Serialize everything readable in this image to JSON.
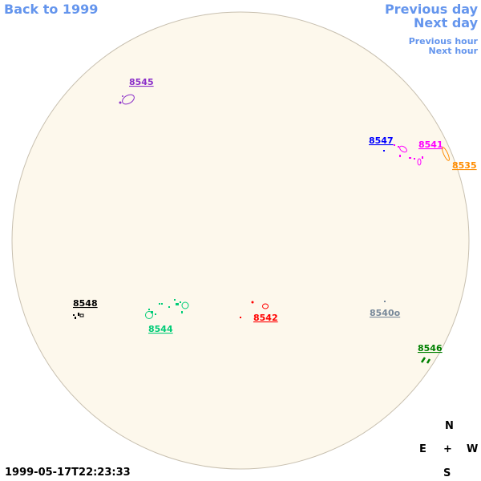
{
  "nav": {
    "back": "Back to 1999",
    "previous_day": "Previous day",
    "next_day": "Next day",
    "previous_hour": "Previous hour",
    "next_hour": "Next hour"
  },
  "colors": {
    "link": "#6495ED",
    "disk_fill": "#FDF8EC",
    "disk_edge": "#C8C0B0"
  },
  "regions": [
    {
      "id": "8545",
      "color": "#8B2FC9"
    },
    {
      "id": "8547",
      "color": "#0000FF"
    },
    {
      "id": "8541",
      "color": "#FF00FF"
    },
    {
      "id": "8535",
      "color": "#FF8C00"
    },
    {
      "id": "8548",
      "color": "#000000"
    },
    {
      "id": "8544",
      "color": "#00CC77"
    },
    {
      "id": "8542",
      "color": "#FF0000"
    },
    {
      "id": "8540o",
      "color": "#778899"
    },
    {
      "id": "8546",
      "color": "#008000"
    }
  ],
  "compass": {
    "north": "N",
    "south": "S",
    "east": "E",
    "west": "W",
    "center": "+"
  },
  "timestamp": "1999-05-17T22:23:33"
}
